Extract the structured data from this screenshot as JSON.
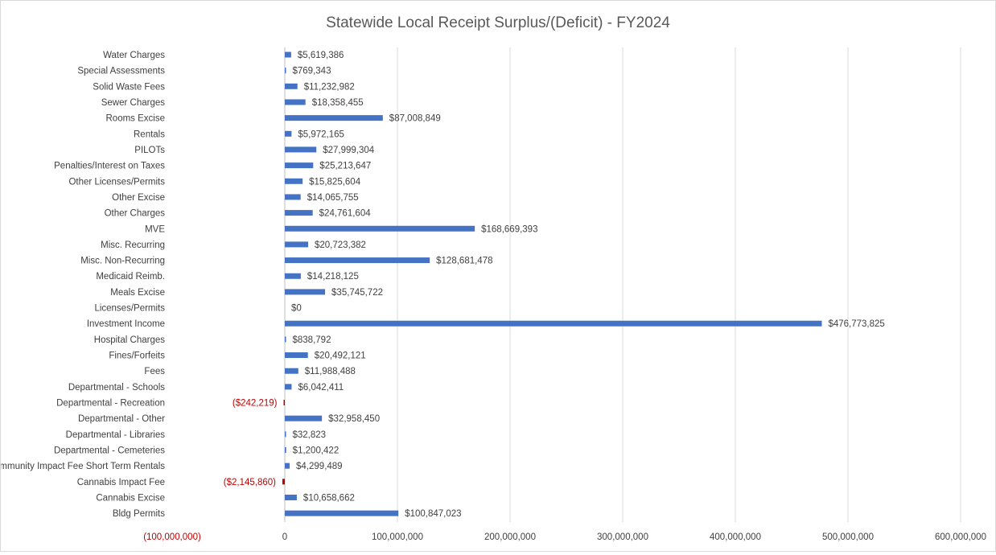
{
  "chart_data": {
    "type": "bar",
    "orientation": "horizontal",
    "title": "Statewide Local Receipt Surplus/(Deficit) -  FY2024",
    "xlabel": "",
    "ylabel": "",
    "xlim": [
      -100000000,
      600000000
    ],
    "x_ticks": [
      -100000000,
      0,
      100000000,
      200000000,
      300000000,
      400000000,
      500000000,
      600000000
    ],
    "x_tick_labels": [
      "(100,000,000)",
      "0",
      "100,000,000",
      "200,000,000",
      "300,000,000",
      "400,000,000",
      "500,000,000",
      "600,000,000"
    ],
    "grid": true,
    "legend": "none",
    "colors": {
      "positive": "#4472c4",
      "negative": "#c00000",
      "text": "#404040",
      "negative_text": "#c00000",
      "title": "#595959",
      "grid": "#d9d9d9"
    },
    "categories": [
      "Water Charges",
      "Special Assessments",
      "Solid Waste Fees",
      "Sewer Charges",
      "Rooms Excise",
      "Rentals",
      "PILOTs",
      "Penalties/Interest on Taxes",
      "Other Licenses/Permits",
      "Other Excise",
      "Other Charges",
      "MVE",
      "Misc. Recurring",
      "Misc. Non-Recurring",
      "Medicaid Reimb.",
      "Meals Excise",
      "Licenses/Permits",
      "Investment Income",
      "Hospital Charges",
      "Fines/Forfeits",
      "Fees",
      "Departmental - Schools",
      "Departmental - Recreation",
      "Departmental - Other",
      "Departmental - Libraries",
      "Departmental - Cemeteries",
      "Community Impact Fee Short Term Rentals",
      "Cannabis Impact Fee",
      "Cannabis Excise",
      "Bldg Permits"
    ],
    "values": [
      5619386,
      769343,
      11232982,
      18358455,
      87008849,
      5972165,
      27999304,
      25213647,
      15825604,
      14065755,
      24761604,
      168669393,
      20723382,
      128681478,
      14218125,
      35745722,
      0,
      476773825,
      838792,
      20492121,
      11988488,
      6042411,
      -242219,
      32958450,
      32823,
      1200422,
      4299489,
      -2145860,
      10658662,
      100847023
    ],
    "data_labels": [
      "$5,619,386",
      "$769,343",
      "$11,232,982",
      "$18,358,455",
      "$87,008,849",
      "$5,972,165",
      "$27,999,304",
      "$25,213,647",
      "$15,825,604",
      "$14,065,755",
      "$24,761,604",
      "$168,669,393",
      "$20,723,382",
      "$128,681,478",
      "$14,218,125",
      "$35,745,722",
      "$0",
      "$476,773,825",
      "$838,792",
      "$20,492,121",
      "$11,988,488",
      "$6,042,411",
      "($242,219)",
      "$32,958,450",
      "$32,823",
      "$1,200,422",
      "$4,299,489",
      "($2,145,860)",
      "$10,658,662",
      "$100,847,023"
    ]
  }
}
